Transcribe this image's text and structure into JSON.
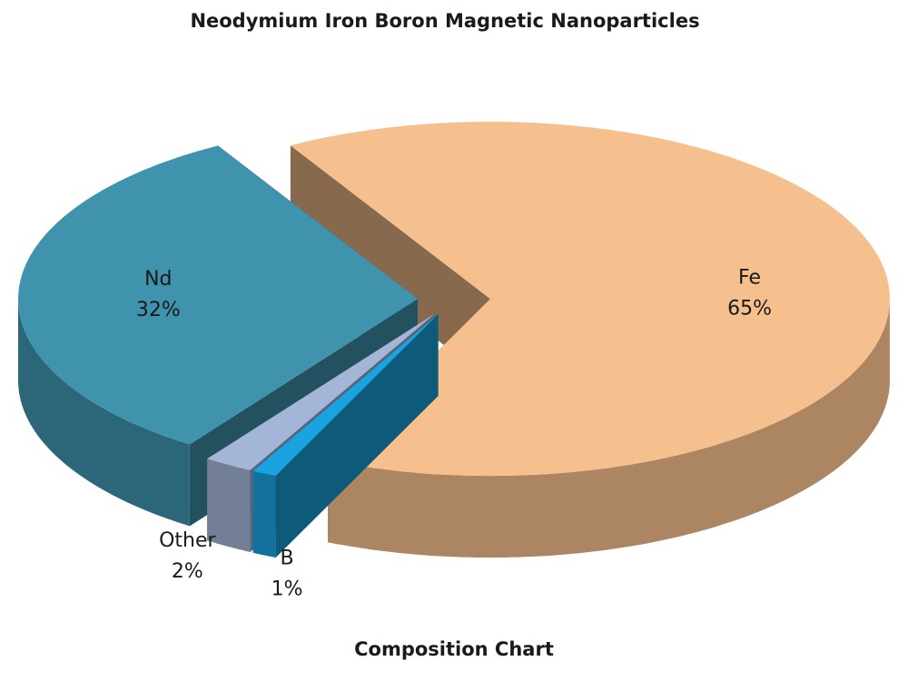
{
  "chart_data": {
    "type": "pie3d",
    "title": "Neodymium Iron Boron Magnetic Nanoparticles",
    "subtitle": "Composition Chart",
    "categories": [
      "Fe",
      "B",
      "Other",
      "Nd"
    ],
    "values": [
      65,
      1,
      2,
      32
    ],
    "value_labels": [
      "65%",
      "1%",
      "2%",
      "32%"
    ],
    "colors": [
      "#f5bf8e",
      "#1aa3e0",
      "#a3b6d8",
      "#3f93ad"
    ]
  }
}
